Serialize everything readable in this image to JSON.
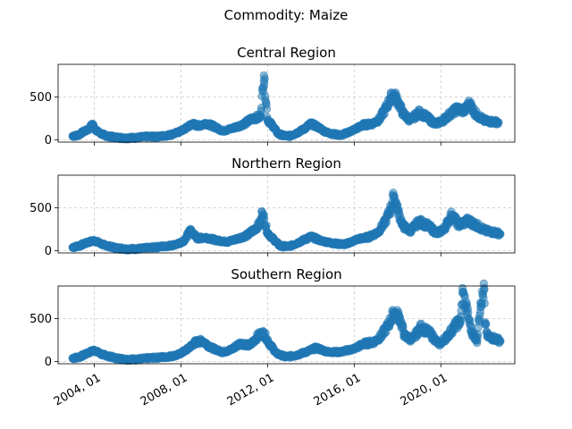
{
  "suptitle": "Commodity: Maize",
  "chart_data": {
    "type": "scatter",
    "title": "Commodity: Maize",
    "x_tick_labels": [
      "2004, 01",
      "2008, 01",
      "2012, 01",
      "2016, 01",
      "2020, 01"
    ],
    "x_ticks": [
      "2004-01-01",
      "2008-01-01",
      "2012-01-01",
      "2016-01-01",
      "2020-01-01"
    ],
    "xlim": [
      "2002-05-01",
      "2023-06-01"
    ],
    "y_ticks": [
      0,
      500
    ],
    "grid": true,
    "color": "#1f77b4",
    "panels": [
      {
        "title": "Central Region",
        "ylim": [
          -25,
          880
        ],
        "points": [
          [
            "2003-01-01",
            45
          ],
          [
            "2003-04-01",
            55
          ],
          [
            "2003-07-01",
            95
          ],
          [
            "2003-10-01",
            125
          ],
          [
            "2003-12-01",
            185
          ],
          [
            "2004-02-01",
            110
          ],
          [
            "2004-05-01",
            70
          ],
          [
            "2004-08-01",
            45
          ],
          [
            "2005-01-01",
            30
          ],
          [
            "2005-06-01",
            22
          ],
          [
            "2006-01-01",
            28
          ],
          [
            "2006-06-01",
            38
          ],
          [
            "2007-01-01",
            40
          ],
          [
            "2007-06-01",
            55
          ],
          [
            "2007-11-01",
            85
          ],
          [
            "2008-03-01",
            125
          ],
          [
            "2008-07-01",
            185
          ],
          [
            "2008-11-01",
            165
          ],
          [
            "2009-03-01",
            195
          ],
          [
            "2009-08-01",
            150
          ],
          [
            "2009-12-01",
            105
          ],
          [
            "2010-04-01",
            125
          ],
          [
            "2010-09-01",
            160
          ],
          [
            "2011-01-01",
            200
          ],
          [
            "2011-05-01",
            255
          ],
          [
            "2011-09-01",
            265
          ],
          [
            "2011-11-01",
            750
          ],
          [
            "2012-01-01",
            235
          ],
          [
            "2012-04-01",
            160
          ],
          [
            "2012-07-01",
            70
          ],
          [
            "2012-10-01",
            50
          ],
          [
            "2013-01-01",
            45
          ],
          [
            "2013-05-01",
            80
          ],
          [
            "2013-09-01",
            125
          ],
          [
            "2014-01-01",
            190
          ],
          [
            "2014-05-01",
            150
          ],
          [
            "2014-09-01",
            95
          ],
          [
            "2015-01-01",
            70
          ],
          [
            "2015-06-01",
            55
          ],
          [
            "2016-01-01",
            120
          ],
          [
            "2016-06-01",
            175
          ],
          [
            "2016-11-01",
            190
          ],
          [
            "2017-03-01",
            240
          ],
          [
            "2017-07-01",
            385
          ],
          [
            "2017-09-01",
            485
          ],
          [
            "2017-11-01",
            525
          ],
          [
            "2018-01-01",
            460
          ],
          [
            "2018-04-01",
            310
          ],
          [
            "2018-08-01",
            230
          ],
          [
            "2019-01-01",
            320
          ],
          [
            "2019-05-01",
            270
          ],
          [
            "2019-10-01",
            185
          ],
          [
            "2020-02-01",
            225
          ],
          [
            "2020-06-01",
            300
          ],
          [
            "2020-10-01",
            360
          ],
          [
            "2021-02-01",
            340
          ],
          [
            "2021-05-01",
            430
          ],
          [
            "2021-08-01",
            310
          ],
          [
            "2022-01-01",
            225
          ],
          [
            "2022-05-01",
            215
          ],
          [
            "2022-09-01",
            205
          ]
        ]
      },
      {
        "title": "Northern Region",
        "ylim": [
          -25,
          880
        ],
        "points": [
          [
            "2003-01-01",
            40
          ],
          [
            "2003-05-01",
            60
          ],
          [
            "2003-09-01",
            95
          ],
          [
            "2004-01-01",
            120
          ],
          [
            "2004-06-01",
            70
          ],
          [
            "2005-01-01",
            32
          ],
          [
            "2005-08-01",
            20
          ],
          [
            "2006-03-01",
            25
          ],
          [
            "2006-10-01",
            40
          ],
          [
            "2007-05-01",
            55
          ],
          [
            "2007-11-01",
            75
          ],
          [
            "2008-03-01",
            115
          ],
          [
            "2008-06-01",
            245
          ],
          [
            "2008-10-01",
            145
          ],
          [
            "2009-03-01",
            155
          ],
          [
            "2009-09-01",
            120
          ],
          [
            "2010-03-01",
            105
          ],
          [
            "2010-09-01",
            145
          ],
          [
            "2011-02-01",
            185
          ],
          [
            "2011-06-01",
            255
          ],
          [
            "2011-09-01",
            320
          ],
          [
            "2011-10-01",
            455
          ],
          [
            "2012-01-01",
            210
          ],
          [
            "2012-04-01",
            140
          ],
          [
            "2012-08-01",
            55
          ],
          [
            "2013-01-01",
            50
          ],
          [
            "2013-07-01",
            105
          ],
          [
            "2014-01-01",
            165
          ],
          [
            "2014-07-01",
            115
          ],
          [
            "2015-02-01",
            85
          ],
          [
            "2015-08-01",
            75
          ],
          [
            "2016-03-01",
            135
          ],
          [
            "2016-09-01",
            160
          ],
          [
            "2017-02-01",
            215
          ],
          [
            "2017-06-01",
            330
          ],
          [
            "2017-09-01",
            480
          ],
          [
            "2017-11-01",
            640
          ],
          [
            "2018-01-01",
            480
          ],
          [
            "2018-04-01",
            290
          ],
          [
            "2018-08-01",
            230
          ],
          [
            "2019-01-01",
            340
          ],
          [
            "2019-06-01",
            290
          ],
          [
            "2019-11-01",
            200
          ],
          [
            "2020-03-01",
            260
          ],
          [
            "2020-07-01",
            420
          ],
          [
            "2020-11-01",
            300
          ],
          [
            "2021-04-01",
            350
          ],
          [
            "2021-09-01",
            295
          ],
          [
            "2022-02-01",
            230
          ],
          [
            "2022-07-01",
            215
          ],
          [
            "2022-10-01",
            195
          ]
        ]
      },
      {
        "title": "Southern Region",
        "ylim": [
          -25,
          880
        ],
        "points": [
          [
            "2003-01-01",
            40
          ],
          [
            "2003-05-01",
            55
          ],
          [
            "2003-09-01",
            95
          ],
          [
            "2004-01-01",
            135
          ],
          [
            "2004-05-01",
            85
          ],
          [
            "2005-01-01",
            40
          ],
          [
            "2005-08-01",
            25
          ],
          [
            "2006-03-01",
            30
          ],
          [
            "2006-10-01",
            45
          ],
          [
            "2007-05-01",
            55
          ],
          [
            "2007-11-01",
            75
          ],
          [
            "2008-04-01",
            135
          ],
          [
            "2008-09-01",
            225
          ],
          [
            "2009-01-01",
            240
          ],
          [
            "2009-06-01",
            160
          ],
          [
            "2009-12-01",
            110
          ],
          [
            "2010-05-01",
            140
          ],
          [
            "2010-10-01",
            215
          ],
          [
            "2011-03-01",
            185
          ],
          [
            "2011-08-01",
            305
          ],
          [
            "2011-11-01",
            330
          ],
          [
            "2012-02-01",
            210
          ],
          [
            "2012-06-01",
            95
          ],
          [
            "2012-11-01",
            55
          ],
          [
            "2013-04-01",
            70
          ],
          [
            "2013-10-01",
            110
          ],
          [
            "2014-04-01",
            160
          ],
          [
            "2014-10-01",
            115
          ],
          [
            "2015-05-01",
            110
          ],
          [
            "2016-01-01",
            150
          ],
          [
            "2016-06-01",
            205
          ],
          [
            "2016-12-01",
            230
          ],
          [
            "2017-04-01",
            300
          ],
          [
            "2017-08-01",
            430
          ],
          [
            "2017-11-01",
            570
          ],
          [
            "2018-02-01",
            520
          ],
          [
            "2018-05-01",
            300
          ],
          [
            "2018-09-01",
            255
          ],
          [
            "2019-02-01",
            400
          ],
          [
            "2019-07-01",
            330
          ],
          [
            "2019-12-01",
            200
          ],
          [
            "2020-04-01",
            280
          ],
          [
            "2020-09-01",
            420
          ],
          [
            "2020-12-01",
            480
          ],
          [
            "2021-01-01",
            800
          ],
          [
            "2021-03-01",
            650
          ],
          [
            "2021-06-01",
            350
          ],
          [
            "2021-09-01",
            250
          ],
          [
            "2021-11-01",
            685
          ],
          [
            "2022-01-01",
            835
          ],
          [
            "2022-01-15",
            435
          ],
          [
            "2022-03-01",
            290
          ],
          [
            "2022-07-01",
            270
          ],
          [
            "2022-10-01",
            240
          ]
        ]
      }
    ]
  }
}
